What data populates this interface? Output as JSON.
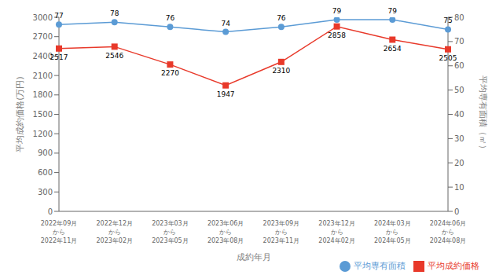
{
  "chart_data": {
    "type": "line",
    "categories": [
      "2022年09月\nから\n2022年11月",
      "2022年12月\nから\n2023年02月",
      "2023年03月\nから\n2023年05月",
      "2023年06月\nから\n2023年08月",
      "2023年09月\nから\n2023年11月",
      "2023年12月\nから\n2024年02月",
      "2024年03月\nから\n2024年05月",
      "2024年06月\nから\n2024年08月"
    ],
    "series": [
      {
        "name": "平均成約価格",
        "color": "#e8392a",
        "marker": "square",
        "values": [
          2517,
          2546,
          2270,
          1947,
          2310,
          2858,
          2654,
          2505
        ]
      },
      {
        "name": "平均専有面積",
        "color": "#5b9bd5",
        "marker": "circle",
        "axis": "y2",
        "values": [
          77,
          78,
          76,
          74,
          76,
          79,
          79,
          75
        ]
      }
    ],
    "x_label": "成約年月",
    "y_label": "平均成約価格(万円)",
    "y2_label": "平均専有面積（㎡）",
    "ylim": [
      0,
      3000
    ],
    "yticks": [
      0,
      300,
      600,
      900,
      1200,
      1500,
      1800,
      2100,
      2400,
      2700,
      3000
    ],
    "y2lim": [
      0,
      80
    ],
    "y2ticks": [
      0,
      10,
      20,
      30,
      40,
      50,
      60,
      70,
      80
    ],
    "data_labels": true,
    "legend": "lower right",
    "grid": false
  }
}
